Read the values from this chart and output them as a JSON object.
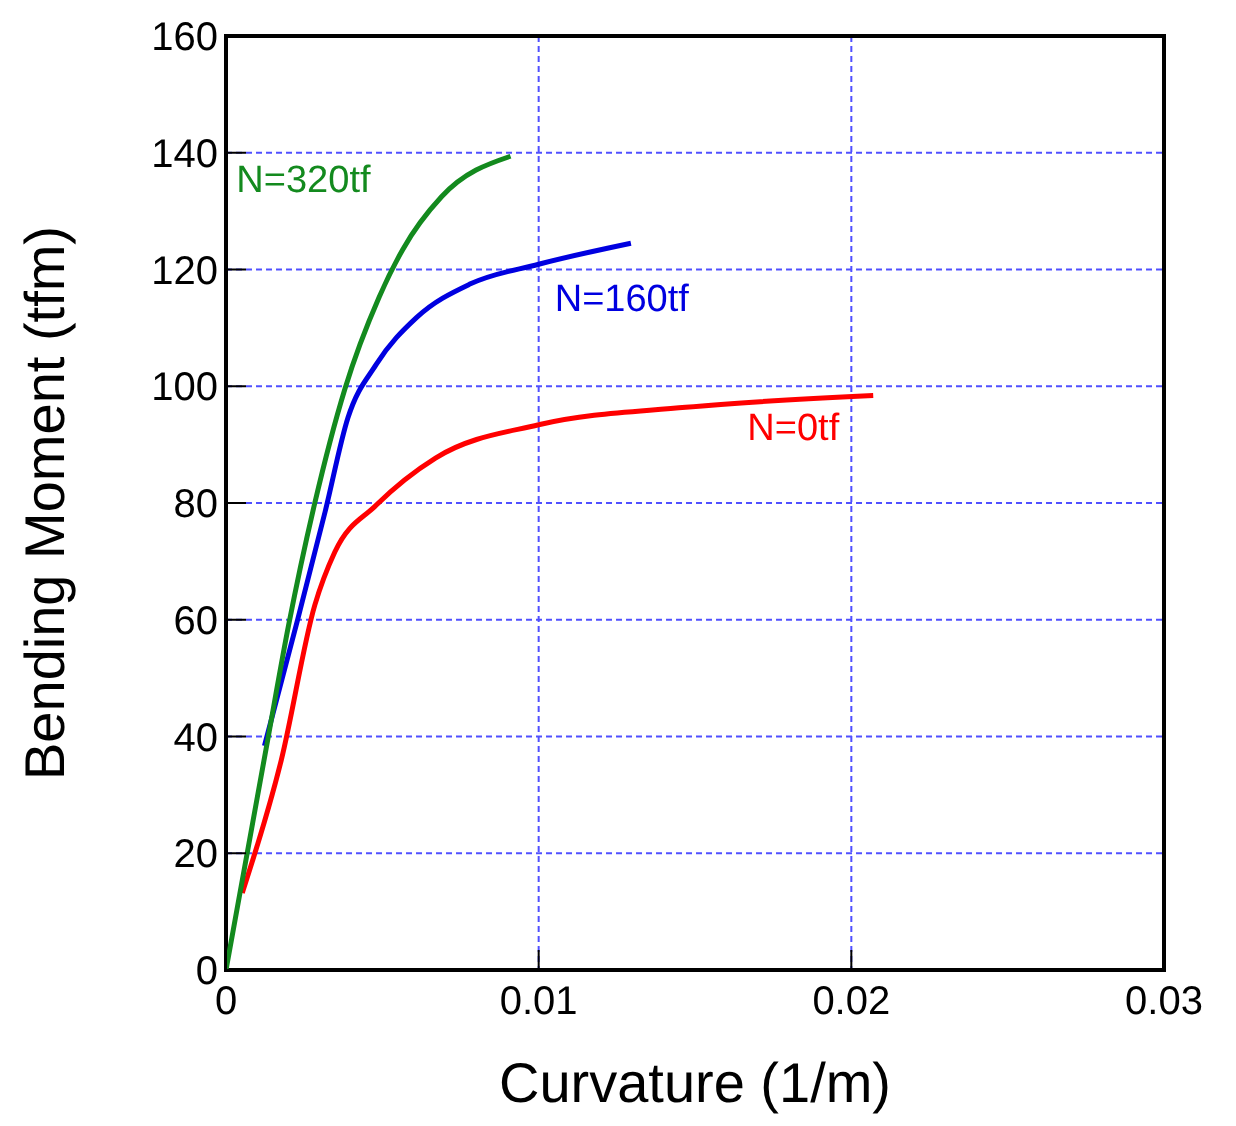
{
  "chart_data": {
    "type": "line",
    "xlabel": "Curvature (1/m)",
    "ylabel": "Bending Moment (tfm)",
    "xlim": [
      0,
      0.03
    ],
    "xticks": [
      0,
      0.01,
      0.02,
      0.03
    ],
    "ylim": [
      0,
      160
    ],
    "yticks": [
      0,
      20,
      40,
      60,
      80,
      100,
      120,
      140,
      160
    ],
    "grid": true,
    "legend": false,
    "marker": "none",
    "line_style": "solid",
    "series": [
      {
        "name": "N=0tf",
        "color": "#ff0000",
        "x": [
          0.00052,
          0.00177,
          0.00284,
          0.00348,
          0.0048,
          0.0067,
          0.01,
          0.0147,
          0.0207
        ],
        "values": [
          13.2,
          36,
          62.5,
          71.6,
          79.6,
          87.7,
          93.4,
          96.4,
          98.4
        ]
      },
      {
        "name": "N=160tf",
        "color": "#0000e0",
        "x": [
          0.00123,
          0.0023,
          0.00317,
          0.0039,
          0.0048,
          0.0061,
          0.0078,
          0.01,
          0.01295
        ],
        "values": [
          38.4,
          60.2,
          78.5,
          94.6,
          103.7,
          111.8,
          117.5,
          120.9,
          124.5
        ]
      },
      {
        "name": "N=320tf",
        "color": "#138a1e",
        "x": [
          0,
          0.00134,
          0.002,
          0.00284,
          0.0038,
          0.0049,
          0.00565,
          0.0069,
          0.0091
        ],
        "values": [
          0,
          39.6,
          59,
          80,
          99.5,
          115.3,
          123.4,
          132.5,
          139.4
        ]
      }
    ]
  }
}
